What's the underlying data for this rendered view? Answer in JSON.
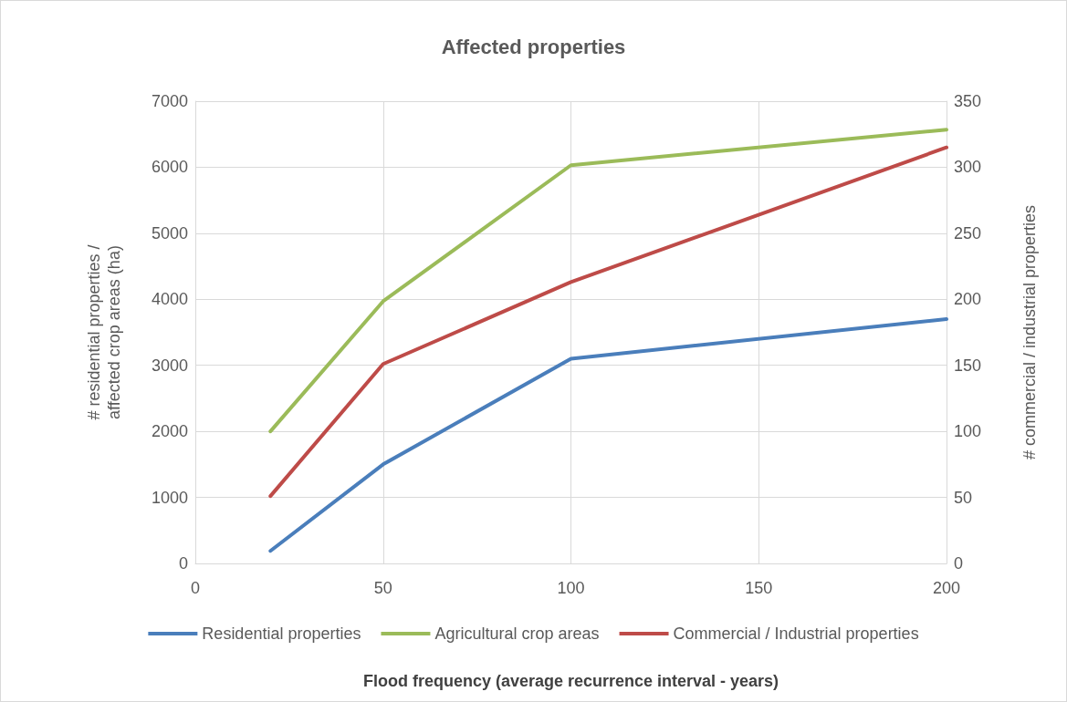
{
  "chart_data": {
    "type": "line",
    "title": "Affected properties",
    "xlabel": "Flood frequency (average recurrence interval - years)",
    "ylabel": "# residential properties / affected crop areas (ha)",
    "y2label": "# commercial / industrial properties",
    "x": [
      20,
      50,
      100,
      200
    ],
    "series": [
      {
        "name": "Residential properties",
        "color": "#4a7ebb",
        "values": [
          190,
          1500,
          3100,
          3700
        ]
      },
      {
        "name": "Agricultural crop areas",
        "color": "#9bbb59",
        "values": [
          2000,
          3970,
          6030,
          6570
        ]
      },
      {
        "name": "Commercial / Industrial properties",
        "color": "#be4b48",
        "values": [
          51,
          151,
          213,
          315
        ],
        "axis": "y2"
      }
    ],
    "xlim": [
      0,
      200
    ],
    "xticks": [
      0,
      50,
      100,
      150,
      200
    ],
    "ylim": [
      0,
      7000
    ],
    "yticks": [
      0,
      1000,
      2000,
      3000,
      4000,
      5000,
      6000,
      7000
    ],
    "y2lim": [
      0,
      350
    ],
    "y2ticks": [
      0,
      50,
      100,
      150,
      200,
      250,
      300,
      350
    ],
    "grid": true,
    "legend": "bottom",
    "marker": "none",
    "line_style": "solid"
  }
}
